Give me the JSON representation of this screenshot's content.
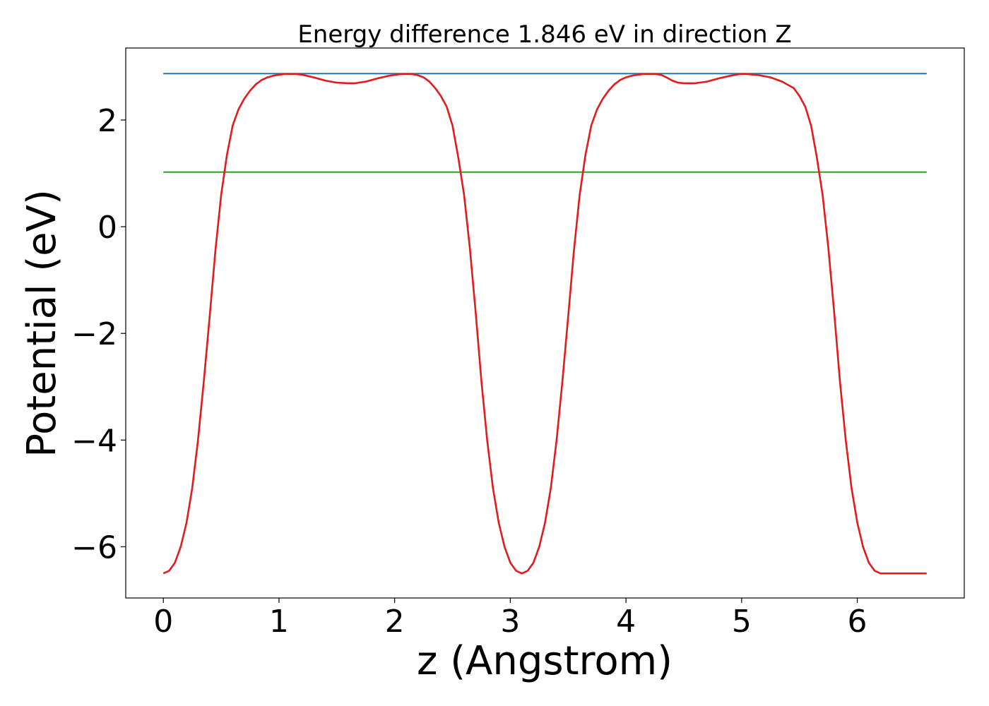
{
  "chart_data": {
    "type": "line",
    "title": "Energy difference 1.846 eV in direction Z",
    "xlabel": "z (Angstrom)",
    "ylabel": "Potential (eV)",
    "xlim": [
      -0.325,
      6.925
    ],
    "ylim": [
      -6.96,
      3.35
    ],
    "xticks": [
      0,
      1,
      2,
      3,
      4,
      5,
      6
    ],
    "xtick_labels": [
      "0",
      "1",
      "2",
      "3",
      "4",
      "5",
      "6"
    ],
    "yticks": [
      -6,
      -4,
      -2,
      0,
      2
    ],
    "ytick_labels": [
      "−6",
      "−4",
      "−2",
      "0",
      "2"
    ],
    "grid": false,
    "colors": {
      "potential": "#e41a1c",
      "upper_level": "#1f77b4",
      "lower_level": "#2ca02c"
    },
    "series": [
      {
        "x": [
          0,
          0.05,
          0.1,
          0.15,
          0.2,
          0.25,
          0.3,
          0.35,
          0.4,
          0.45,
          0.5,
          0.55,
          0.6,
          0.65,
          0.7,
          0.75,
          0.8,
          0.85,
          0.9,
          0.95,
          1.0,
          1.05,
          1.1,
          1.15,
          1.2,
          1.3,
          1.4,
          1.5,
          1.6,
          1.66,
          1.75,
          1.85,
          1.95,
          2.05,
          2.15,
          2.2,
          2.25,
          2.3,
          2.35,
          2.4,
          2.45,
          2.5,
          2.55,
          2.6,
          2.65,
          2.7,
          2.75,
          2.8,
          2.85,
          2.9,
          2.95,
          3.0,
          3.05,
          3.1,
          3.15,
          3.2,
          3.25,
          3.3,
          3.35,
          3.4,
          3.45,
          3.5,
          3.55,
          3.6,
          3.65,
          3.7,
          3.75,
          3.8,
          3.85,
          3.9,
          3.95,
          4.0,
          4.05,
          4.1,
          4.15,
          4.2,
          4.25,
          4.3,
          4.35,
          4.4,
          4.45,
          4.5,
          4.6,
          4.7,
          4.8,
          4.9,
          4.98,
          5.05,
          5.15,
          5.25,
          5.35,
          5.45,
          5.5,
          5.55,
          5.6,
          5.65,
          5.7,
          5.75,
          5.8,
          5.85,
          5.9,
          5.95,
          6.0,
          6.05,
          6.1,
          6.15,
          6.2,
          6.25,
          6.3,
          6.35,
          6.4,
          6.45,
          6.5,
          6.55,
          6.6
        ],
        "y": [
          -6.5,
          -6.45,
          -6.3,
          -6.0,
          -5.55,
          -4.9,
          -4.0,
          -2.9,
          -1.7,
          -0.45,
          0.6,
          1.35,
          1.9,
          2.2,
          2.4,
          2.55,
          2.67,
          2.75,
          2.8,
          2.83,
          2.85,
          2.86,
          2.86,
          2.86,
          2.85,
          2.8,
          2.74,
          2.7,
          2.69,
          2.69,
          2.72,
          2.78,
          2.83,
          2.86,
          2.86,
          2.84,
          2.8,
          2.72,
          2.6,
          2.45,
          2.25,
          1.9,
          1.3,
          0.6,
          -0.4,
          -1.6,
          -2.9,
          -4.0,
          -4.9,
          -5.55,
          -6.0,
          -6.3,
          -6.45,
          -6.5,
          -6.45,
          -6.3,
          -6.0,
          -5.55,
          -4.9,
          -4.0,
          -2.9,
          -1.7,
          -0.45,
          0.6,
          1.35,
          1.9,
          2.2,
          2.4,
          2.55,
          2.67,
          2.75,
          2.8,
          2.83,
          2.85,
          2.86,
          2.86,
          2.86,
          2.85,
          2.8,
          2.74,
          2.7,
          2.69,
          2.69,
          2.72,
          2.78,
          2.83,
          2.86,
          2.86,
          2.84,
          2.8,
          2.72,
          2.6,
          2.45,
          2.25,
          1.9,
          1.3,
          0.6,
          -0.4,
          -1.6,
          -2.9,
          -4.0,
          -4.9,
          -5.55,
          -6.0,
          -6.3,
          -6.45,
          -6.5,
          -6.5,
          -6.5,
          -6.5,
          -6.5,
          -6.5,
          -6.5,
          -6.5,
          -6.5
        ]
      },
      {
        "x": [
          0,
          6.6
        ],
        "y": [
          2.87,
          2.87
        ]
      },
      {
        "x": [
          0,
          6.6
        ],
        "y": [
          1.024,
          1.024
        ]
      }
    ]
  }
}
